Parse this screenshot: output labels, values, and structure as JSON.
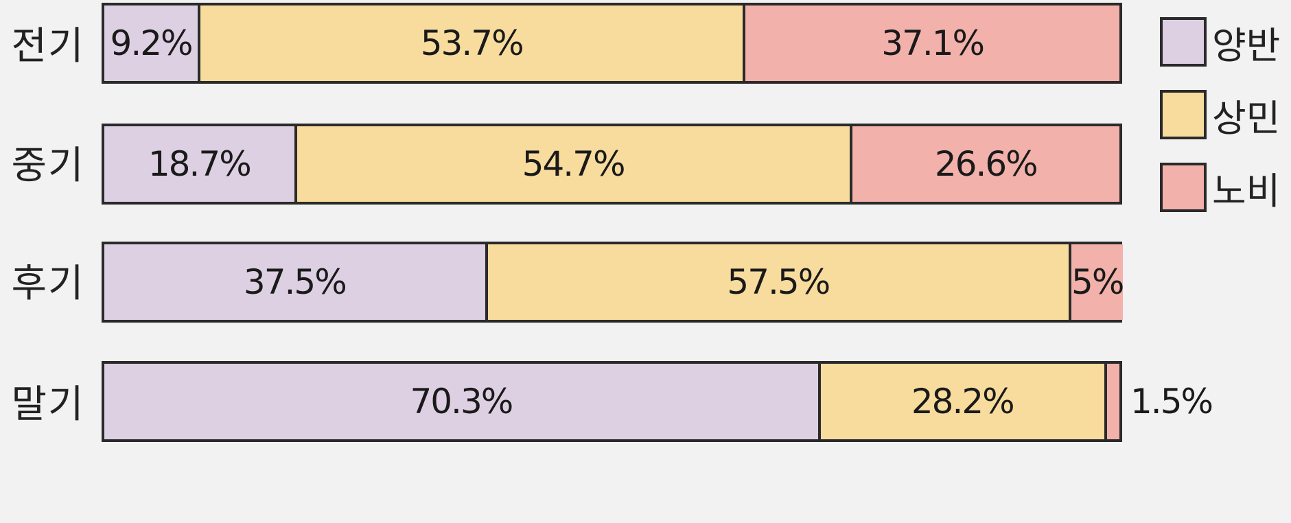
{
  "chart_data": {
    "type": "bar",
    "orientation": "horizontal",
    "stacked": true,
    "normalized": true,
    "categories": [
      "전기",
      "중기",
      "후기",
      "말기"
    ],
    "series": [
      {
        "name": "양반",
        "color": "#ddd0e2",
        "values": [
          9.2,
          18.7,
          37.5,
          70.3
        ]
      },
      {
        "name": "상민",
        "color": "#f8dc9e",
        "values": [
          53.7,
          54.7,
          57.5,
          28.2
        ]
      },
      {
        "name": "노비",
        "color": "#f2b1ab",
        "values": [
          37.1,
          26.6,
          5,
          1.5
        ]
      }
    ],
    "data_labels": [
      [
        "9.2%",
        "53.7%",
        "37.1%"
      ],
      [
        "18.7%",
        "54.7%",
        "26.6%"
      ],
      [
        "37.5%",
        "57.5%",
        "5%"
      ],
      [
        "70.3%",
        "28.2%",
        "1.5%"
      ]
    ],
    "xlim": [
      0,
      100
    ],
    "legend": {
      "position": "top-right"
    },
    "grid": false
  }
}
